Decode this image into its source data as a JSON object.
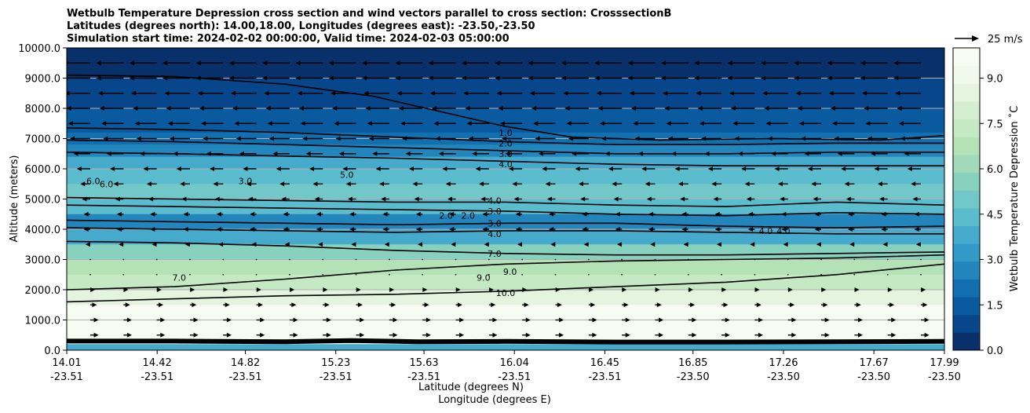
{
  "chart_data": {
    "type": "contour",
    "title_lines": [
      "Wetbulb Temperature Depression cross section and wind vectors parallel to cross section: CrosssectionB",
      "Latitudes (degrees north): 14.00,18.00, Longitudes (degrees east): -23.50,-23.50",
      "Simulation start time: 2024-02-02 00:00:00, Valid time: 2024-02-03 05:00:00"
    ],
    "xlabel_lat": "Latitude (degrees N)",
    "xlabel_lon": "Longitude (degrees E)",
    "ylabel": "Altitude (meters)",
    "ylim": [
      0,
      10000
    ],
    "x_range": [
      14.01,
      17.99
    ],
    "yticks": [
      {
        "value": 0,
        "label": "0.0"
      },
      {
        "value": 1000,
        "label": "1000.0"
      },
      {
        "value": 2000,
        "label": "2000.0"
      },
      {
        "value": 3000,
        "label": "3000.0"
      },
      {
        "value": 4000,
        "label": "4000.0"
      },
      {
        "value": 5000,
        "label": "5000.0"
      },
      {
        "value": 6000,
        "label": "6000.0"
      },
      {
        "value": 7000,
        "label": "7000.0"
      },
      {
        "value": 8000,
        "label": "8000.0"
      },
      {
        "value": 9000,
        "label": "9000.0"
      },
      {
        "value": 10000,
        "label": "10000.0"
      }
    ],
    "xticks": [
      {
        "lat": 14.01,
        "lat_label": "14.01",
        "lon_label": "-23.51"
      },
      {
        "lat": 14.42,
        "lat_label": "14.42",
        "lon_label": "-23.51"
      },
      {
        "lat": 14.82,
        "lat_label": "14.82",
        "lon_label": "-23.51"
      },
      {
        "lat": 15.23,
        "lat_label": "15.23",
        "lon_label": "-23.51"
      },
      {
        "lat": 15.63,
        "lat_label": "15.63",
        "lon_label": "-23.51"
      },
      {
        "lat": 16.04,
        "lat_label": "16.04",
        "lon_label": "-23.51"
      },
      {
        "lat": 16.45,
        "lat_label": "16.45",
        "lon_label": "-23.51"
      },
      {
        "lat": 16.85,
        "lat_label": "16.85",
        "lon_label": "-23.50"
      },
      {
        "lat": 17.26,
        "lat_label": "17.26",
        "lon_label": "-23.50"
      },
      {
        "lat": 17.67,
        "lat_label": "17.67",
        "lon_label": "-23.50"
      },
      {
        "lat": 17.99,
        "lat_label": "17.99",
        "lon_label": "-23.50"
      }
    ],
    "grid_horizontal": true,
    "colorbar": {
      "label": "Wetbulb Temperature Depression ˚C",
      "range": [
        0,
        10
      ],
      "ticks": [
        {
          "value": 0,
          "label": "0.0"
        },
        {
          "value": 1.5,
          "label": "1.5"
        },
        {
          "value": 3,
          "label": "3.0"
        },
        {
          "value": 4.5,
          "label": "4.5"
        },
        {
          "value": 6,
          "label": "6.0"
        },
        {
          "value": 7.5,
          "label": "7.5"
        },
        {
          "value": 9,
          "label": "9.0"
        }
      ],
      "colors": [
        "#08306b",
        "#08468b",
        "#0a5a9f",
        "#1370b0",
        "#2286bd",
        "#3399c6",
        "#46aacc",
        "#5bbcce",
        "#72c8c8",
        "#89d1bf",
        "#a0dab8",
        "#b3e2b7",
        "#c5e9c2",
        "#d5eecf",
        "#e4f4df",
        "#f1f9ec",
        "#f7fcf2"
      ]
    },
    "wind_key": {
      "label": "25 m/s",
      "speed": 25
    },
    "contour_levels_labeled": [
      "1.0",
      "2.0",
      "3.0",
      "4.0",
      "4.0",
      "3.0",
      "3.0",
      "4.0",
      "7.0",
      "9.0",
      "9.0",
      "10.0",
      "2.0",
      "2.0",
      "5.0",
      "6.0",
      "6.0",
      "3.0",
      "7.0",
      "4.0",
      "4.0"
    ],
    "bands": [
      {
        "alt": 10000,
        "value": 0.4
      },
      {
        "alt": 9000,
        "value": 0.7
      },
      {
        "alt": 8000,
        "value": 1.3
      },
      {
        "alt": 7200,
        "value": 1.9
      },
      {
        "alt": 6800,
        "value": 2.6
      },
      {
        "alt": 6400,
        "value": 3.6
      },
      {
        "alt": 6000,
        "value": 4.6
      },
      {
        "alt": 5500,
        "value": 5.2
      },
      {
        "alt": 5000,
        "value": 4.2
      },
      {
        "alt": 4500,
        "value": 2.4
      },
      {
        "alt": 4000,
        "value": 3.6
      },
      {
        "alt": 3500,
        "value": 5.6
      },
      {
        "alt": 3000,
        "value": 6.8
      },
      {
        "alt": 2500,
        "value": 7.6
      },
      {
        "alt": 2000,
        "value": 8.8
      },
      {
        "alt": 1500,
        "value": 10.0
      },
      {
        "alt": 400,
        "value": 10.0
      },
      {
        "alt": 200,
        "value": 4.0
      },
      {
        "alt": 0,
        "value": 2.0
      }
    ],
    "contours": [
      {
        "label": "1.0",
        "pts": [
          [
            14.01,
            9100
          ],
          [
            14.5,
            9050
          ],
          [
            15.0,
            8800
          ],
          [
            15.4,
            8400
          ],
          [
            15.7,
            7900
          ],
          [
            16.0,
            7400
          ],
          [
            16.3,
            7050
          ],
          [
            16.7,
            6950
          ],
          [
            17.2,
            7000
          ],
          [
            17.7,
            6950
          ],
          [
            17.99,
            7100
          ]
        ]
      },
      {
        "label": "2.0",
        "pts": [
          [
            14.01,
            7350
          ],
          [
            14.5,
            7300
          ],
          [
            15.0,
            7200
          ],
          [
            15.5,
            7050
          ],
          [
            16.0,
            6900
          ],
          [
            16.5,
            6800
          ],
          [
            17.0,
            6800
          ],
          [
            17.5,
            6850
          ],
          [
            17.99,
            6850
          ]
        ]
      },
      {
        "label": "3.0",
        "pts": [
          [
            14.01,
            6950
          ],
          [
            14.5,
            6900
          ],
          [
            15.0,
            6800
          ],
          [
            15.5,
            6700
          ],
          [
            16.0,
            6600
          ],
          [
            16.5,
            6500
          ],
          [
            17.0,
            6500
          ],
          [
            17.5,
            6550
          ],
          [
            17.99,
            6550
          ]
        ]
      },
      {
        "label": "4.0",
        "pts": [
          [
            14.01,
            6550
          ],
          [
            14.5,
            6500
          ],
          [
            15.0,
            6420
          ],
          [
            15.5,
            6350
          ],
          [
            16.0,
            6250
          ],
          [
            16.5,
            6150
          ],
          [
            17.0,
            6100
          ],
          [
            17.5,
            6100
          ],
          [
            17.99,
            6100
          ]
        ]
      },
      {
        "label": "4.0",
        "pts": [
          [
            14.01,
            5050
          ],
          [
            14.5,
            5000
          ],
          [
            15.0,
            4950
          ],
          [
            15.5,
            4900
          ],
          [
            16.0,
            4900
          ],
          [
            16.5,
            4800
          ],
          [
            17.0,
            4750
          ],
          [
            17.5,
            4900
          ],
          [
            17.99,
            4800
          ]
        ]
      },
      {
        "label": "3.0",
        "pts": [
          [
            14.01,
            4800
          ],
          [
            14.5,
            4750
          ],
          [
            15.0,
            4700
          ],
          [
            15.5,
            4650
          ],
          [
            16.0,
            4600
          ],
          [
            16.5,
            4500
          ],
          [
            17.0,
            4450
          ],
          [
            17.5,
            4550
          ],
          [
            17.99,
            4500
          ]
        ]
      },
      {
        "label": "3.0",
        "pts": [
          [
            14.01,
            4300
          ],
          [
            14.5,
            4250
          ],
          [
            15.0,
            4200
          ],
          [
            15.5,
            4150
          ],
          [
            16.0,
            4200
          ],
          [
            16.5,
            4200
          ],
          [
            17.0,
            4100
          ],
          [
            17.5,
            4050
          ],
          [
            17.99,
            4100
          ]
        ]
      },
      {
        "label": "4.0",
        "pts": [
          [
            14.01,
            4050
          ],
          [
            14.5,
            4000
          ],
          [
            15.0,
            3950
          ],
          [
            15.5,
            3900
          ],
          [
            16.0,
            3950
          ],
          [
            16.5,
            3950
          ],
          [
            17.0,
            3900
          ],
          [
            17.5,
            3850
          ],
          [
            17.99,
            3850
          ]
        ]
      },
      {
        "label": "7.0",
        "pts": [
          [
            14.01,
            3600
          ],
          [
            14.5,
            3550
          ],
          [
            15.0,
            3450
          ],
          [
            15.5,
            3300
          ],
          [
            16.0,
            3200
          ],
          [
            16.5,
            3150
          ],
          [
            17.0,
            3150
          ],
          [
            17.5,
            3200
          ],
          [
            17.99,
            3250
          ]
        ]
      },
      {
        "label": "9.0",
        "pts": [
          [
            14.01,
            2000
          ],
          [
            14.5,
            2100
          ],
          [
            15.0,
            2350
          ],
          [
            15.5,
            2650
          ],
          [
            16.0,
            2850
          ],
          [
            16.5,
            2950
          ],
          [
            17.0,
            3000
          ],
          [
            17.5,
            3050
          ],
          [
            17.99,
            3150
          ]
        ]
      },
      {
        "label": "10.0",
        "pts": [
          [
            14.01,
            1600
          ],
          [
            14.5,
            1700
          ],
          [
            15.0,
            1800
          ],
          [
            15.5,
            1850
          ],
          [
            16.0,
            1950
          ],
          [
            16.5,
            2100
          ],
          [
            17.0,
            2250
          ],
          [
            17.5,
            2500
          ],
          [
            17.99,
            2850
          ]
        ]
      },
      {
        "label": "0.0",
        "pts": [
          [
            14.01,
            300
          ],
          [
            14.5,
            300
          ],
          [
            15.0,
            280
          ],
          [
            15.3,
            320
          ],
          [
            15.6,
            280
          ],
          [
            16.0,
            290
          ],
          [
            16.5,
            270
          ],
          [
            17.0,
            270
          ],
          [
            17.5,
            280
          ],
          [
            17.99,
            290
          ]
        ]
      }
    ],
    "contour_labels": [
      {
        "label": "1.0",
        "lat": 16.0,
        "alt": 7200
      },
      {
        "label": "2.0",
        "lat": 16.0,
        "alt": 6850
      },
      {
        "label": "3.0",
        "lat": 16.0,
        "alt": 6500
      },
      {
        "label": "4.0",
        "lat": 16.0,
        "alt": 6150
      },
      {
        "label": "4.0",
        "lat": 15.95,
        "alt": 4950
      },
      {
        "label": "3.0",
        "lat": 15.95,
        "alt": 4600
      },
      {
        "label": "3.0",
        "lat": 15.95,
        "alt": 4200
      },
      {
        "label": "4.0",
        "lat": 15.95,
        "alt": 3850
      },
      {
        "label": "7.0",
        "lat": 15.95,
        "alt": 3200
      },
      {
        "label": "9.0",
        "lat": 15.9,
        "alt": 2400
      },
      {
        "label": "9.0",
        "lat": 16.02,
        "alt": 2600
      },
      {
        "label": "10.0",
        "lat": 16.0,
        "alt": 1900
      },
      {
        "label": "2.0",
        "lat": 15.73,
        "alt": 4450
      },
      {
        "label": "2.0",
        "lat": 15.83,
        "alt": 4450
      },
      {
        "label": "5.0",
        "lat": 15.28,
        "alt": 5800
      },
      {
        "label": "6.0",
        "lat": 14.13,
        "alt": 5600
      },
      {
        "label": "6.0",
        "lat": 14.19,
        "alt": 5500
      },
      {
        "label": "3.0",
        "lat": 14.82,
        "alt": 5600
      },
      {
        "label": "7.0",
        "lat": 14.52,
        "alt": 2400
      },
      {
        "label": "4.0",
        "lat": 17.18,
        "alt": 3950
      },
      {
        "label": "4.0",
        "lat": 17.26,
        "alt": 3950
      }
    ],
    "wind_rows": [
      {
        "alt": 9500,
        "u": -14
      },
      {
        "alt": 9000,
        "u": -14
      },
      {
        "alt": 8500,
        "u": -13
      },
      {
        "alt": 8000,
        "u": -12
      },
      {
        "alt": 7500,
        "u": -11
      },
      {
        "alt": 7000,
        "u": -10
      },
      {
        "alt": 6500,
        "u": -8
      },
      {
        "alt": 6000,
        "u": -6
      },
      {
        "alt": 5500,
        "u": -4
      },
      {
        "alt": 5000,
        "u": -3
      },
      {
        "alt": 4500,
        "u": -2
      },
      {
        "alt": 4000,
        "u": -2
      },
      {
        "alt": 3500,
        "u": -1
      },
      {
        "alt": 3000,
        "u": 0
      },
      {
        "alt": 2500,
        "u": 0
      },
      {
        "alt": 2000,
        "u": 1
      },
      {
        "alt": 1500,
        "u": 2
      },
      {
        "alt": 1000,
        "u": 3
      },
      {
        "alt": 500,
        "u": 3
      }
    ],
    "wind_columns": 26
  }
}
